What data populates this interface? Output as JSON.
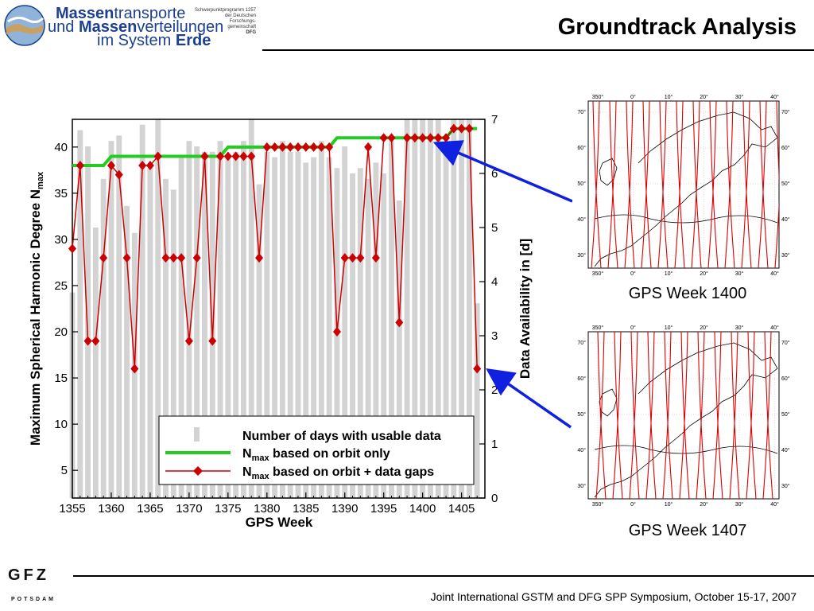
{
  "header": {
    "title": "Groundtrack Analysis",
    "logo": {
      "line1_bold": "Massen",
      "line1_rest": "transporte",
      "line2_pre": "und ",
      "line2_bold": "Massen",
      "line2_rest": "verteilungen",
      "line3_pre": "im System ",
      "line3_bold": "Erde",
      "dfg_lines": [
        "Schwerpunktprogramm 1257",
        "der Deutschen",
        "Forschungs-",
        "gemeinschaft",
        "DFG"
      ]
    }
  },
  "footer": {
    "org_logo": "GFZ",
    "org_sub": "POTSDAM",
    "text": "Joint International GSTM and DFG SPP Symposium, October 15-17, 2007"
  },
  "maps": [
    {
      "caption": "GPS Week 1400",
      "lon_labels": [
        "350°",
        "0°",
        "10°",
        "20°",
        "30°",
        "40°"
      ],
      "lat_labels": [
        "70°",
        "60°",
        "50°",
        "40°",
        "30°"
      ]
    },
    {
      "caption": "GPS Week 1407",
      "lon_labels": [
        "350°",
        "0°",
        "10°",
        "20°",
        "30°",
        "40°"
      ],
      "lat_labels": [
        "70°",
        "60°",
        "50°",
        "40°",
        "30°"
      ]
    }
  ],
  "colors": {
    "bars": "#d3d3d3",
    "orbit_only": "#22cc22",
    "with_gaps": "#cc0000",
    "arrow": "#1020e0",
    "logo_blue": "#1d3f8f"
  },
  "chart_data": {
    "type": "bar+line",
    "xlabel": "GPS Week",
    "ylabel_left": "Maximum Spherical Harmonic Degree N",
    "ylabel_left_sub": "max",
    "ylabel_right": "Data Availability in [d]",
    "xlim": [
      1355,
      1408
    ],
    "ylim_left": [
      2,
      43
    ],
    "ylim_right": [
      0,
      7
    ],
    "x_ticks": [
      1355,
      1360,
      1365,
      1370,
      1375,
      1380,
      1385,
      1390,
      1395,
      1400,
      1405
    ],
    "y_left_ticks": [
      5,
      10,
      15,
      20,
      25,
      30,
      35,
      40
    ],
    "y_right_ticks": [
      0,
      1,
      2,
      3,
      4,
      5,
      6,
      7
    ],
    "legend": {
      "placement": "bottom-right",
      "entries": [
        {
          "label": "Number of days with usable data"
        },
        {
          "pre": "N",
          "sub": "max",
          "label": " based on orbit only"
        },
        {
          "pre": "N",
          "sub": "max",
          "label": " based on orbit + data gaps"
        }
      ]
    },
    "x": [
      1355,
      1356,
      1357,
      1358,
      1359,
      1360,
      1361,
      1362,
      1363,
      1364,
      1365,
      1366,
      1367,
      1368,
      1369,
      1370,
      1371,
      1372,
      1373,
      1374,
      1375,
      1376,
      1377,
      1378,
      1379,
      1380,
      1381,
      1382,
      1383,
      1384,
      1385,
      1386,
      1387,
      1388,
      1389,
      1390,
      1391,
      1392,
      1393,
      1394,
      1395,
      1396,
      1397,
      1398,
      1399,
      1400,
      1401,
      1402,
      1403,
      1404,
      1405,
      1406,
      1407
    ],
    "series": [
      {
        "name": "Number of days with usable data",
        "axis": "right",
        "values": [
          3.8,
          6.8,
          6.5,
          5.0,
          5.9,
          6.6,
          6.7,
          5.4,
          4.9,
          6.9,
          6.1,
          7.0,
          5.9,
          5.7,
          6.3,
          6.6,
          6.5,
          6.4,
          6.4,
          6.6,
          6.3,
          6.4,
          6.6,
          7.0,
          5.8,
          6.4,
          6.3,
          6.6,
          6.4,
          6.4,
          6.2,
          6.3,
          6.6,
          6.3,
          6.1,
          6.5,
          6.0,
          6.1,
          5.9,
          6.2,
          6.0,
          6.6,
          5.5,
          7.0,
          7.0,
          7.0,
          7.0,
          7.0,
          6.5,
          7.0,
          7.0,
          7.0,
          3.6
        ]
      },
      {
        "name": "N_max based on orbit only",
        "axis": "left",
        "values": [
          38,
          38,
          38,
          38,
          38,
          39,
          39,
          39,
          39,
          39,
          39,
          39,
          39,
          39,
          39,
          39,
          39,
          39,
          39,
          39,
          40,
          40,
          40,
          40,
          40,
          40,
          40,
          40,
          40,
          40,
          40,
          40,
          40,
          40,
          41,
          41,
          41,
          41,
          41,
          41,
          41,
          41,
          41,
          41,
          41,
          41,
          41,
          41,
          41,
          42,
          42,
          42,
          42
        ]
      },
      {
        "name": "N_max based on orbit + data gaps",
        "axis": "left",
        "values": [
          29,
          38,
          19,
          19,
          28,
          38,
          37,
          28,
          16,
          38,
          38,
          39,
          28,
          28,
          28,
          19,
          28,
          39,
          19,
          39,
          39,
          39,
          39,
          39,
          28,
          40,
          40,
          40,
          40,
          40,
          40,
          40,
          40,
          40,
          20,
          28,
          28,
          28,
          40,
          28,
          41,
          41,
          21,
          41,
          41,
          41,
          41,
          41,
          41,
          42,
          42,
          42,
          16
        ]
      }
    ]
  }
}
